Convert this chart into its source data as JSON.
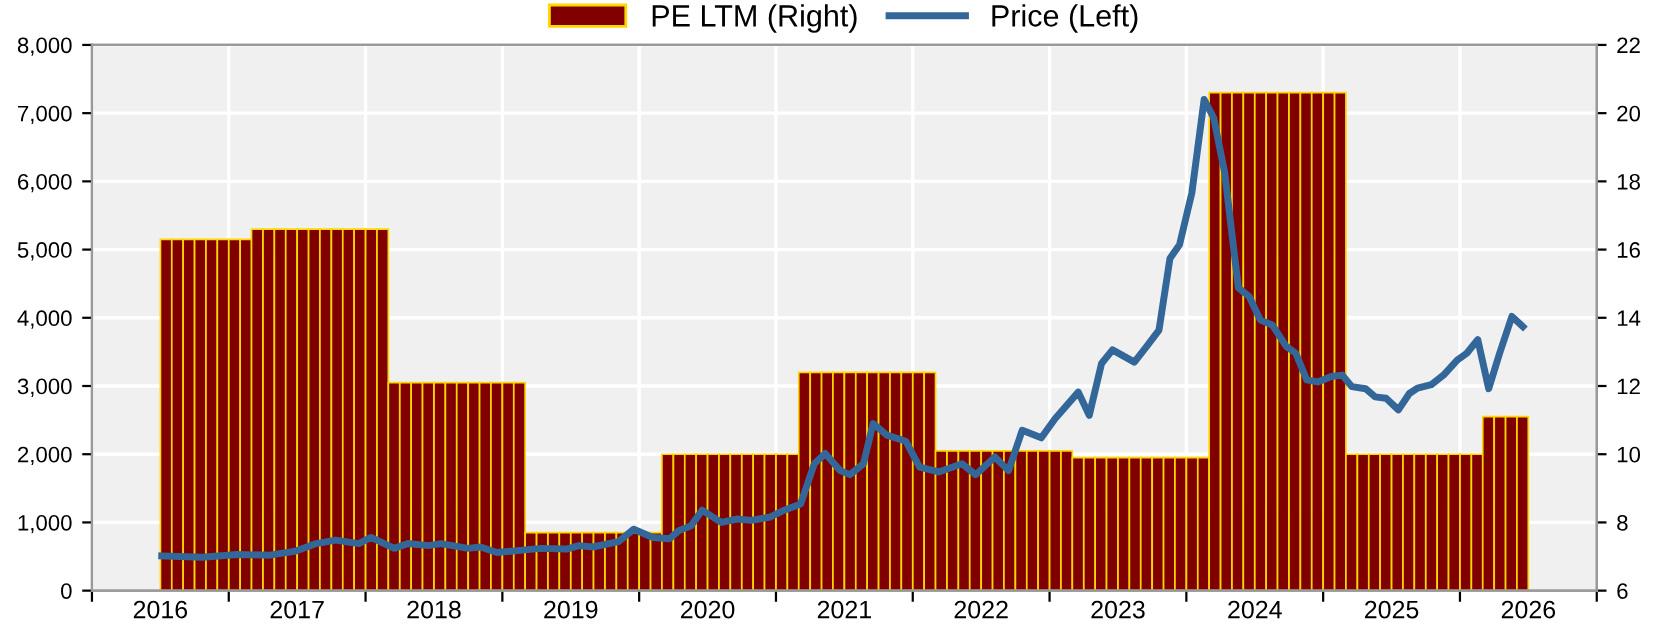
{
  "chart_data": {
    "type": "bar",
    "legend": "top",
    "grid": true,
    "xlim": [
      2016,
      2027
    ],
    "xticks": [
      {
        "value": 2016,
        "label": null
      },
      {
        "value": 2016.5,
        "label": "2016"
      },
      {
        "value": 2017,
        "label": null
      },
      {
        "value": 2017.5,
        "label": "2017"
      },
      {
        "value": 2018,
        "label": null
      },
      {
        "value": 2018.5,
        "label": "2018"
      },
      {
        "value": 2019,
        "label": null
      },
      {
        "value": 2019.5,
        "label": "2019"
      },
      {
        "value": 2020,
        "label": null
      },
      {
        "value": 2020.5,
        "label": "2020"
      },
      {
        "value": 2021,
        "label": null
      },
      {
        "value": 2021.5,
        "label": "2021"
      },
      {
        "value": 2022,
        "label": null
      },
      {
        "value": 2022.5,
        "label": "2022"
      },
      {
        "value": 2023,
        "label": null
      },
      {
        "value": 2023.5,
        "label": "2023"
      },
      {
        "value": 2024,
        "label": null
      },
      {
        "value": 2024.5,
        "label": "2024"
      },
      {
        "value": 2025,
        "label": null
      },
      {
        "value": 2025.5,
        "label": "2025"
      },
      {
        "value": 2026,
        "label": null
      },
      {
        "value": 2026.5,
        "label": "2026"
      },
      {
        "value": 2027,
        "label": null
      }
    ],
    "ylim": [
      0,
      8000
    ],
    "yticks": [
      0,
      {
        "value": 1000,
        "label": "1,000"
      },
      {
        "value": 2000,
        "label": "2,000"
      },
      {
        "value": 3000,
        "label": "3,000"
      },
      {
        "value": 4000,
        "label": "4,000"
      },
      {
        "value": 5000,
        "label": "5,000"
      },
      {
        "value": 6000,
        "label": "6,000"
      },
      {
        "value": 7000,
        "label": "7,000"
      },
      {
        "value": 8000,
        "label": "8,000"
      }
    ],
    "y2lim": [
      6,
      22
    ],
    "y2ticks": [
      6,
      8,
      10,
      12,
      14,
      16,
      18,
      20,
      22
    ],
    "series": [
      {
        "name": "PE LTM (Right)",
        "axis": "y2",
        "color": "#800000",
        "x": [
          2016.542,
          2016.625,
          2016.708,
          2016.792,
          2016.875,
          2016.958,
          2017.042,
          2017.125,
          2017.208,
          2017.292,
          2017.375,
          2017.458,
          2017.542,
          2017.625,
          2017.708,
          2017.792,
          2017.875,
          2017.958,
          2018.042,
          2018.125,
          2018.208,
          2018.292,
          2018.375,
          2018.458,
          2018.542,
          2018.625,
          2018.708,
          2018.792,
          2018.875,
          2018.958,
          2019.042,
          2019.125,
          2019.208,
          2019.292,
          2019.375,
          2019.458,
          2019.542,
          2019.625,
          2019.708,
          2019.792,
          2019.875,
          2019.958,
          2020.042,
          2020.125,
          2020.208,
          2020.292,
          2020.375,
          2020.458,
          2020.542,
          2020.625,
          2020.708,
          2020.792,
          2020.875,
          2020.958,
          2021.042,
          2021.125,
          2021.208,
          2021.292,
          2021.375,
          2021.458,
          2021.542,
          2021.625,
          2021.708,
          2021.792,
          2021.875,
          2021.958,
          2022.042,
          2022.125,
          2022.208,
          2022.292,
          2022.375,
          2022.458,
          2022.542,
          2022.625,
          2022.708,
          2022.792,
          2022.875,
          2022.958,
          2023.042,
          2023.125,
          2023.208,
          2023.292,
          2023.375,
          2023.458,
          2023.542,
          2023.625,
          2023.708,
          2023.792,
          2023.875,
          2023.958,
          2024.042,
          2024.125,
          2024.208,
          2024.292,
          2024.375,
          2024.458,
          2024.542,
          2024.625,
          2024.708,
          2024.792,
          2024.875,
          2024.958,
          2025.042,
          2025.125,
          2025.208,
          2025.292,
          2025.375,
          2025.458,
          2025.542,
          2025.625,
          2025.708,
          2025.792,
          2025.875,
          2025.958,
          2026.042,
          2026.125,
          2026.208,
          2026.292,
          2026.375,
          2026.458
        ],
        "values": [
          16.3,
          16.3,
          16.3,
          16.3,
          16.3,
          16.3,
          16.3,
          16.3,
          16.6,
          16.6,
          16.6,
          16.6,
          16.6,
          16.6,
          16.6,
          16.6,
          16.6,
          16.6,
          16.6,
          16.6,
          12.1,
          12.1,
          12.1,
          12.1,
          12.1,
          12.1,
          12.1,
          12.1,
          12.1,
          12.1,
          12.1,
          12.1,
          7.7,
          7.7,
          7.7,
          7.7,
          7.7,
          7.7,
          7.7,
          7.7,
          7.7,
          7.7,
          7.7,
          7.7,
          10.0,
          10.0,
          10.0,
          10.0,
          10.0,
          10.0,
          10.0,
          10.0,
          10.0,
          10.0,
          10.0,
          10.0,
          12.4,
          12.4,
          12.4,
          12.4,
          12.4,
          12.4,
          12.4,
          12.4,
          12.4,
          12.4,
          12.4,
          12.4,
          10.1,
          10.1,
          10.1,
          10.1,
          10.1,
          10.1,
          10.1,
          10.1,
          10.1,
          10.1,
          10.1,
          10.1,
          9.9,
          9.9,
          9.9,
          9.9,
          9.9,
          9.9,
          9.9,
          9.9,
          9.9,
          9.9,
          9.9,
          9.9,
          20.6,
          20.6,
          20.6,
          20.6,
          20.6,
          20.6,
          20.6,
          20.6,
          20.6,
          20.6,
          20.6,
          20.6,
          10.0,
          10.0,
          10.0,
          10.0,
          10.0,
          10.0,
          10.0,
          10.0,
          10.0,
          10.0,
          10.0,
          10.0,
          11.1,
          11.1,
          11.1,
          11.1
        ]
      },
      {
        "name": "Price (Left)",
        "type": "line",
        "color": "#336699",
        "x": [
          2016.51,
          2016.81,
          2017.06,
          2017.3,
          2017.49,
          2017.64,
          2017.78,
          2017.95,
          2018.04,
          2018.21,
          2018.31,
          2018.46,
          2018.55,
          2018.75,
          2018.84,
          2018.96,
          2019.13,
          2019.28,
          2019.47,
          2019.56,
          2019.66,
          2019.85,
          2019.96,
          2020.1,
          2020.22,
          2020.29,
          2020.38,
          2020.46,
          2020.6,
          2020.72,
          2020.82,
          2020.96,
          2021.06,
          2021.18,
          2021.28,
          2021.36,
          2021.47,
          2021.54,
          2021.64,
          2021.71,
          2021.81,
          2021.95,
          2022.05,
          2022.19,
          2022.36,
          2022.46,
          2022.6,
          2022.7,
          2022.8,
          2022.94,
          2023.04,
          2023.21,
          2023.29,
          2023.38,
          2023.46,
          2023.62,
          2023.71,
          2023.8,
          2023.88,
          2023.95,
          2024.04,
          2024.13,
          2024.2,
          2024.28,
          2024.38,
          2024.46,
          2024.54,
          2024.63,
          2024.73,
          2024.8,
          2024.88,
          2024.96,
          2025.06,
          2025.14,
          2025.21,
          2025.31,
          2025.38,
          2025.46,
          2025.55,
          2025.63,
          2025.69,
          2025.79,
          2025.88,
          2025.98,
          2026.05,
          2026.13,
          2026.21,
          2026.29,
          2026.38,
          2026.46
        ],
        "values": [
          510,
          490,
          530,
          520,
          580,
          690,
          740,
          690,
          780,
          620,
          690,
          660,
          690,
          620,
          640,
          560,
          590,
          620,
          610,
          660,
          640,
          720,
          900,
          780,
          760,
          880,
          950,
          1180,
          1000,
          1050,
          1030,
          1080,
          1180,
          1270,
          1860,
          2010,
          1760,
          1700,
          1860,
          2450,
          2280,
          2190,
          1810,
          1740,
          1860,
          1700,
          1960,
          1760,
          2350,
          2240,
          2520,
          2910,
          2570,
          3330,
          3530,
          3350,
          3580,
          3820,
          4870,
          5070,
          5830,
          7200,
          6930,
          6130,
          4440,
          4310,
          3970,
          3890,
          3580,
          3480,
          3090,
          3060,
          3140,
          3160,
          2990,
          2960,
          2840,
          2820,
          2650,
          2890,
          2970,
          3020,
          3160,
          3380,
          3480,
          3680,
          2960,
          3480,
          4020,
          3870
        ]
      }
    ]
  }
}
